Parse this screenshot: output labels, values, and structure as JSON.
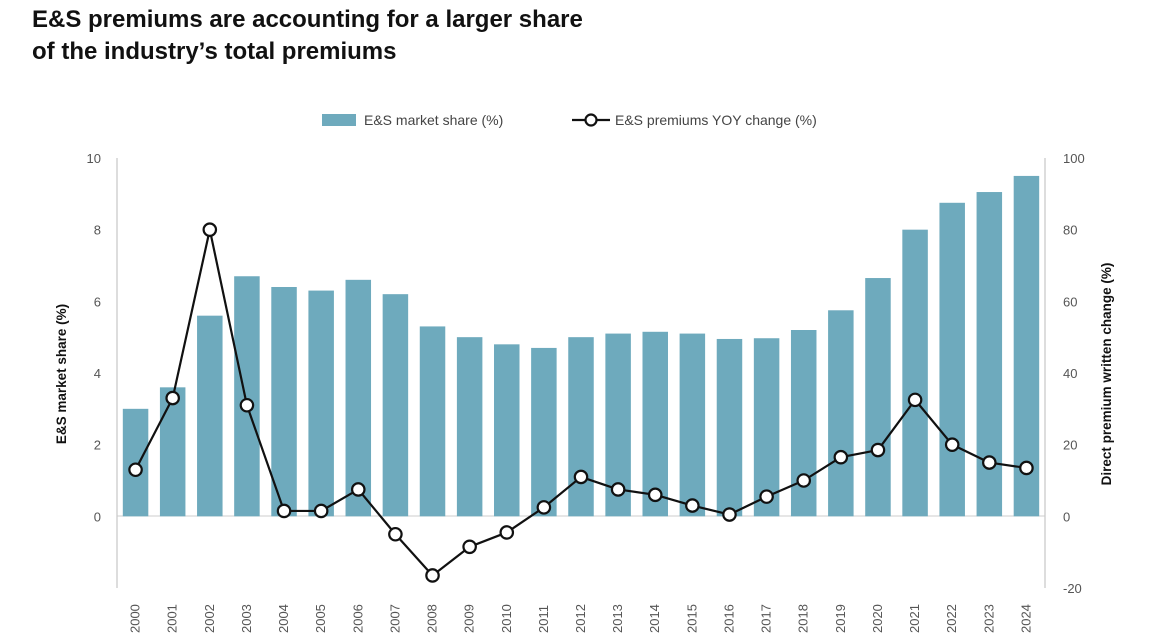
{
  "chart_data": {
    "type": "bar",
    "title_lines": [
      "E&S premiums are accounting for a larger share",
      "of the industry’s total premiums"
    ],
    "categories": [
      "2000",
      "2001",
      "2002",
      "2003",
      "2004",
      "2005",
      "2006",
      "2007",
      "2008",
      "2009",
      "2010",
      "2011",
      "2012",
      "2013",
      "2014",
      "2015",
      "2016",
      "2017",
      "2018",
      "2019",
      "2020",
      "2021",
      "2022",
      "2023",
      "2024"
    ],
    "series": [
      {
        "name": "E&S market share (%)",
        "type": "bar",
        "axis": "left",
        "color": "#6eaabd",
        "values": [
          3.0,
          3.6,
          5.6,
          6.7,
          6.4,
          6.3,
          6.6,
          6.2,
          5.3,
          5.0,
          4.8,
          4.7,
          5.0,
          5.1,
          5.15,
          5.1,
          4.95,
          4.97,
          5.2,
          5.75,
          6.65,
          8.0,
          8.75,
          9.05,
          9.5
        ]
      },
      {
        "name": "E&S premiums YOY change (%)",
        "type": "line",
        "axis": "right",
        "color": "#111111",
        "values": [
          13,
          33,
          80,
          31,
          1.5,
          1.5,
          7.5,
          -5,
          -16.5,
          -8.5,
          -4.5,
          2.5,
          11,
          7.5,
          6,
          3,
          0.5,
          5.5,
          10,
          16.5,
          18.5,
          32.5,
          20,
          15,
          13.5
        ]
      }
    ],
    "ylabel": "E&S market share (%)",
    "ylabel_right": "Direct premium written change (%)",
    "ylim": [
      -2,
      10
    ],
    "ylim_right": [
      -20,
      100
    ],
    "yticks": [
      0,
      2,
      4,
      6,
      8,
      10
    ],
    "yticks_right": [
      -20,
      0,
      20,
      40,
      60,
      80,
      100
    ],
    "legend_position": "top-center",
    "grid": false
  }
}
